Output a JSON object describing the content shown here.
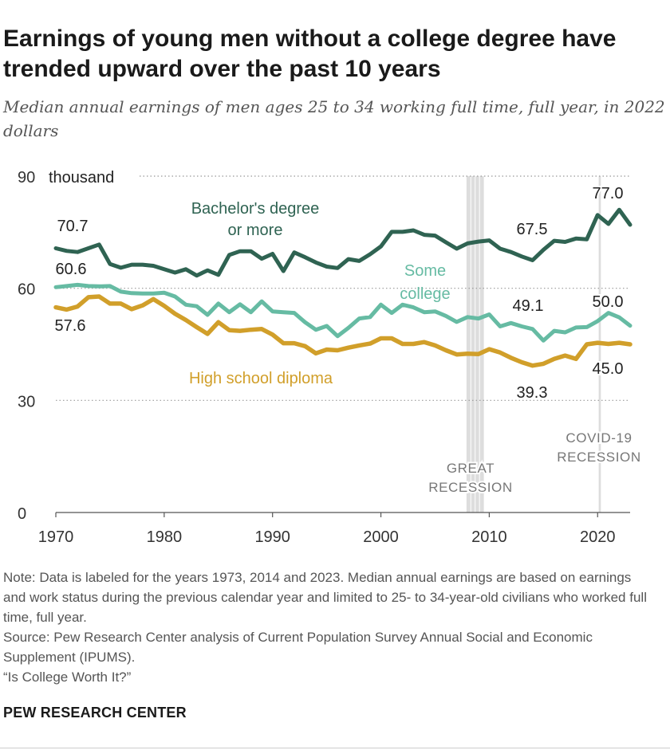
{
  "header": {
    "title": "Earnings of young men without a college degree have trended upward over the past 10 years",
    "subtitle": "Median annual earnings of men ages 25 to 34 working full time, full year, in 2022 dollars"
  },
  "chart_data": {
    "type": "line",
    "title": "Earnings of young men without a college degree have trended upward over the past 10 years",
    "ylabel_unit": "thousand",
    "ylim": [
      0,
      90
    ],
    "yticks": [
      0,
      30,
      60,
      90
    ],
    "xlim": [
      1970,
      2023
    ],
    "xticks": [
      1970,
      1980,
      1990,
      2000,
      2010,
      2020
    ],
    "x": [
      1970,
      1971,
      1972,
      1973,
      1974,
      1975,
      1976,
      1977,
      1978,
      1979,
      1980,
      1981,
      1982,
      1983,
      1984,
      1985,
      1986,
      1987,
      1988,
      1989,
      1990,
      1991,
      1992,
      1993,
      1994,
      1995,
      1996,
      1997,
      1998,
      1999,
      2000,
      2001,
      2002,
      2003,
      2004,
      2005,
      2006,
      2007,
      2008,
      2009,
      2010,
      2011,
      2012,
      2013,
      2014,
      2015,
      2016,
      2017,
      2018,
      2019,
      2020,
      2021,
      2022,
      2023
    ],
    "series": [
      {
        "name": "Bachelor's degree or more",
        "label_lines": [
          "Bachelor's degree",
          "or more"
        ],
        "color": "#2f6352",
        "values": [
          70.7,
          70.0,
          69.7,
          70.7,
          71.7,
          66.5,
          65.5,
          66.3,
          66.3,
          66.0,
          65.1,
          64.2,
          65.1,
          63.4,
          64.8,
          63.6,
          68.9,
          69.9,
          69.9,
          67.9,
          69.2,
          64.6,
          69.6,
          68.3,
          66.9,
          65.8,
          65.4,
          67.8,
          67.3,
          69.1,
          71.2,
          75.1,
          75.1,
          75.5,
          74.3,
          74.1,
          72.3,
          70.6,
          72.0,
          72.5,
          72.8,
          70.6,
          69.7,
          68.5,
          67.5,
          70.3,
          72.7,
          72.4,
          73.3,
          73.1,
          79.6,
          77.2,
          81.0,
          77.0
        ]
      },
      {
        "name": "Some college",
        "label_lines": [
          "Some",
          "college"
        ],
        "color": "#66bba3",
        "values": [
          60.3,
          60.6,
          60.9,
          60.6,
          60.5,
          60.6,
          59.1,
          58.7,
          58.6,
          58.6,
          58.8,
          57.8,
          55.6,
          55.2,
          52.9,
          55.9,
          53.6,
          55.7,
          53.6,
          56.5,
          53.8,
          53.6,
          53.4,
          50.9,
          48.9,
          49.9,
          47.2,
          49.4,
          51.9,
          52.3,
          55.6,
          53.4,
          55.6,
          54.9,
          53.6,
          53.8,
          52.6,
          51.0,
          52.3,
          51.9,
          53.0,
          49.8,
          50.7,
          49.8,
          49.1,
          46.0,
          48.6,
          48.2,
          49.5,
          49.6,
          51.2,
          53.4,
          52.2,
          50.0
        ]
      },
      {
        "name": "High school diploma",
        "label_lines": [
          "High school diploma"
        ],
        "color": "#d19f2a",
        "values": [
          54.9,
          54.3,
          55.1,
          57.6,
          57.8,
          55.9,
          55.9,
          54.4,
          55.4,
          57.1,
          55.3,
          53.2,
          51.5,
          49.6,
          47.8,
          50.9,
          48.8,
          48.6,
          48.9,
          49.1,
          47.6,
          45.3,
          45.3,
          44.5,
          42.6,
          43.6,
          43.4,
          44.1,
          44.7,
          45.2,
          46.6,
          46.6,
          45.1,
          45.1,
          45.6,
          44.7,
          43.4,
          42.3,
          42.5,
          42.4,
          43.7,
          42.8,
          41.4,
          40.2,
          39.3,
          39.8,
          41.1,
          42.0,
          41.1,
          45.0,
          45.4,
          45.1,
          45.4,
          45.0
        ]
      }
    ],
    "data_labels": [
      {
        "series": 0,
        "year": 1973,
        "text": "70.7"
      },
      {
        "series": 0,
        "year": 2014,
        "text": "67.5"
      },
      {
        "series": 0,
        "year": 2023,
        "text": "77.0"
      },
      {
        "series": 1,
        "year": 1973,
        "text": "60.6"
      },
      {
        "series": 1,
        "year": 2014,
        "text": "49.1"
      },
      {
        "series": 1,
        "year": 2023,
        "text": "50.0"
      },
      {
        "series": 2,
        "year": 1973,
        "text": "57.6"
      },
      {
        "series": 2,
        "year": 2014,
        "text": "39.3"
      },
      {
        "series": 2,
        "year": 2023,
        "text": "45.0"
      }
    ],
    "recessions": [
      {
        "label_lines": [
          "GREAT",
          "RECESSION"
        ],
        "start": 2007.9,
        "end": 2009.5,
        "color": "#dddddd"
      },
      {
        "label_lines": [
          "COVID-19",
          "RECESSION"
        ],
        "start": 2020.1,
        "end": 2020.3,
        "color": "#dddddd"
      }
    ],
    "gridline_color": "#999999"
  },
  "notes": {
    "note": "Note: Data is labeled for the years 1973, 2014 and 2023. Median annual earnings are based on earnings and work status during the previous calendar year and limited to 25- to 34-year-old civilians who worked full time, full year.",
    "source": "Source: Pew Research Center analysis of Current Population Survey Annual Social and Economic Supplement (IPUMS).",
    "report": "“Is College Worth It?”"
  },
  "footer": {
    "org": "PEW RESEARCH CENTER"
  }
}
